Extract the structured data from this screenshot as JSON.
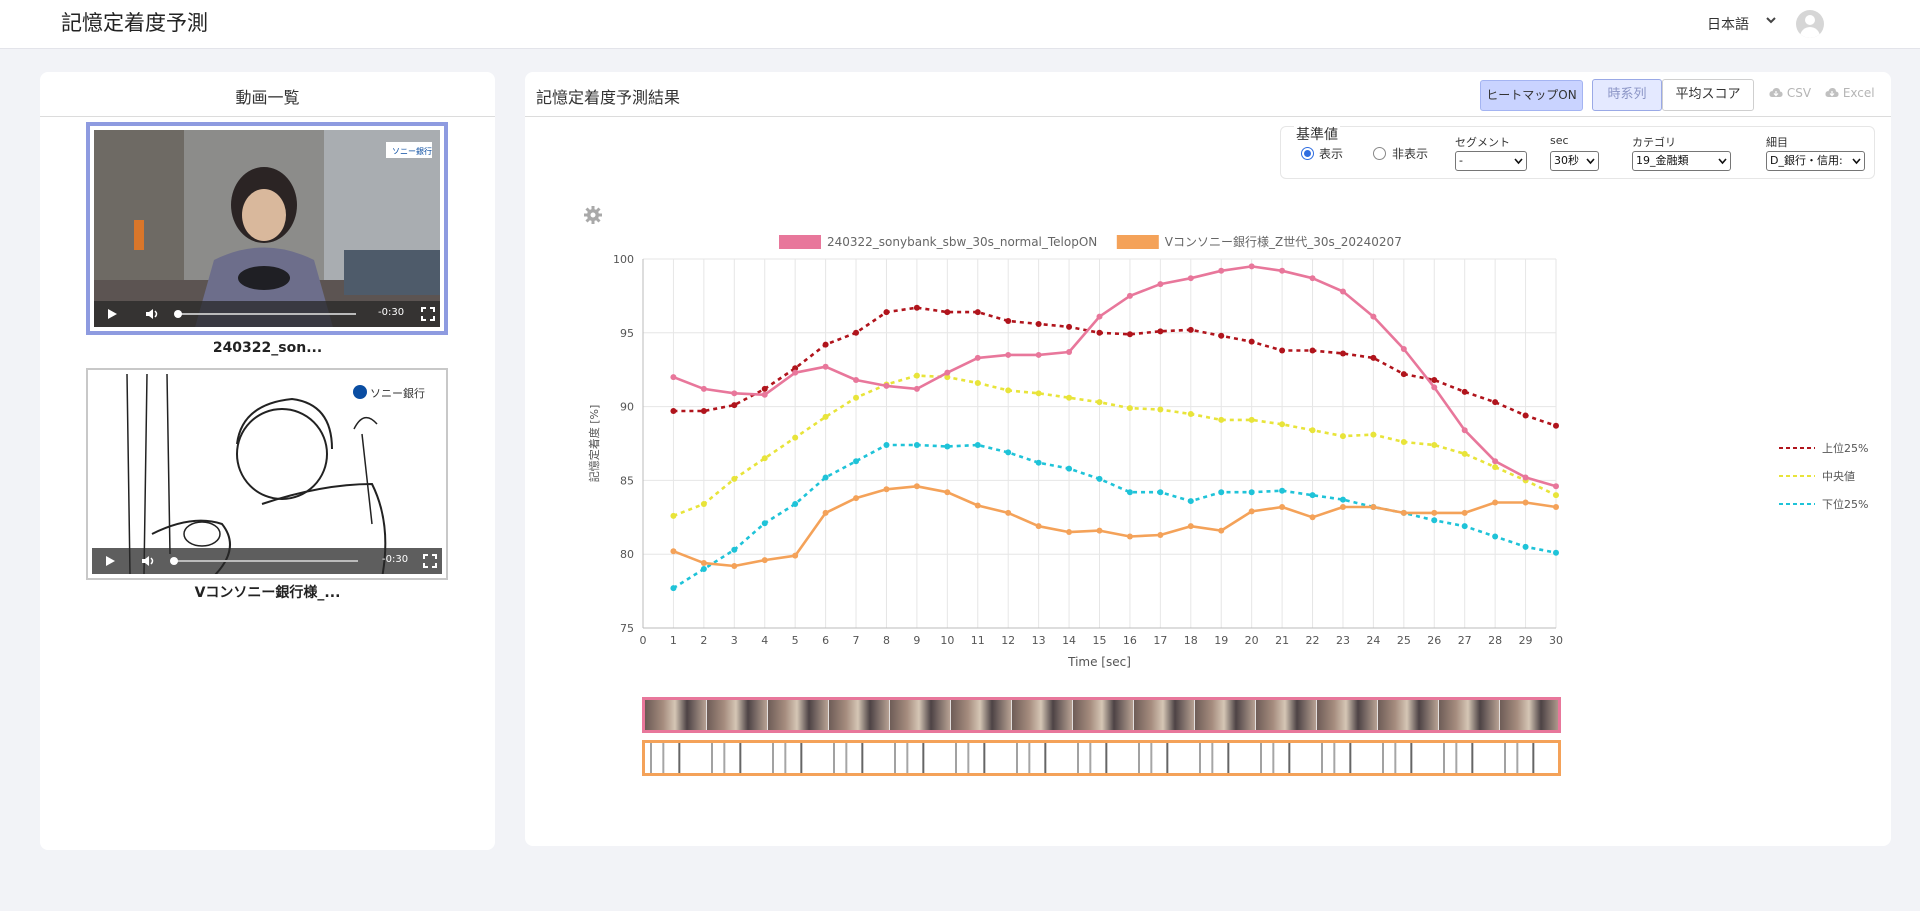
{
  "header": {
    "app_title": "記憶定着度予測",
    "language": "日本語",
    "icons": [
      "chevron-down-icon",
      "user-avatar-icon"
    ]
  },
  "video_list": {
    "title": "動画一覧",
    "items": [
      {
        "label": "240322_son...",
        "time": "-0:30",
        "selected": true,
        "logo_text": "ソニー銀行"
      },
      {
        "label": "Vコンソニー銀行様_...",
        "time": "-0:30",
        "selected": false,
        "logo_text": "ソニー銀行"
      }
    ]
  },
  "results": {
    "title": "記憶定着度予測結果",
    "heatmap_button": "ヒートマップON",
    "view_tabs": [
      "時系列",
      "平均スコア"
    ],
    "active_tab": "時系列",
    "export": {
      "csv": "CSV",
      "excel": "Excel"
    },
    "reference": {
      "title": "基準値",
      "show_label": "表示",
      "hide_label": "非表示",
      "selected": "表示",
      "segment_label": "セグメント",
      "segment_value": "-",
      "sec_label": "sec",
      "sec_value": "30秒",
      "category_label": "カテゴリ",
      "category_value": "19_金融類",
      "item_label": "細目",
      "item_value": "D_銀行・信用:"
    }
  },
  "chart_data": {
    "type": "line",
    "xlabel": "Time [sec]",
    "ylabel": "記憶定着度 [%]",
    "xlim": [
      0,
      30
    ],
    "ylim": [
      75,
      100
    ],
    "x_ticks": [
      0,
      1,
      2,
      3,
      4,
      5,
      6,
      7,
      8,
      9,
      10,
      11,
      12,
      13,
      14,
      15,
      16,
      17,
      18,
      19,
      20,
      21,
      22,
      23,
      24,
      25,
      26,
      27,
      28,
      29,
      30
    ],
    "y_ticks": [
      75,
      80,
      85,
      90,
      95,
      100
    ],
    "grid": true,
    "legend_position": "top",
    "x": [
      1,
      2,
      3,
      4,
      5,
      6,
      7,
      8,
      9,
      10,
      11,
      12,
      13,
      14,
      15,
      16,
      17,
      18,
      19,
      20,
      21,
      22,
      23,
      24,
      25,
      26,
      27,
      28,
      29,
      30
    ],
    "series": [
      {
        "name": "240322_sonybank_sbw_30s_normal_TelopON",
        "color": "#e8779b",
        "style": "solid",
        "values": [
          92.0,
          91.2,
          90.9,
          90.8,
          92.3,
          92.7,
          91.8,
          91.4,
          91.2,
          92.3,
          93.3,
          93.5,
          93.5,
          93.7,
          96.1,
          97.5,
          98.3,
          98.7,
          99.2,
          99.5,
          99.2,
          98.7,
          97.8,
          96.1,
          93.9,
          91.3,
          88.4,
          86.3,
          85.2,
          84.6
        ]
      },
      {
        "name": "Vコンソニー銀行様_Z世代_30s_20240207",
        "color": "#f4a259",
        "style": "solid",
        "values": [
          80.2,
          79.4,
          79.2,
          79.6,
          79.9,
          82.8,
          83.8,
          84.4,
          84.6,
          84.2,
          83.3,
          82.8,
          81.9,
          81.5,
          81.6,
          81.2,
          81.3,
          81.9,
          81.6,
          82.9,
          83.2,
          82.5,
          83.2,
          83.2,
          82.8,
          82.8,
          82.8,
          83.5,
          83.5,
          83.2
        ]
      },
      {
        "name": "上位25%",
        "color": "#b0141c",
        "style": "dashed",
        "values": [
          89.7,
          89.7,
          90.1,
          91.2,
          92.6,
          94.2,
          95.0,
          96.4,
          96.7,
          96.4,
          96.4,
          95.8,
          95.6,
          95.4,
          95.0,
          94.9,
          95.1,
          95.2,
          94.8,
          94.4,
          93.8,
          93.8,
          93.6,
          93.3,
          92.2,
          91.8,
          91.0,
          90.3,
          89.4,
          88.7
        ]
      },
      {
        "name": "中央値",
        "color": "#e8e43a",
        "style": "dashed",
        "values": [
          82.6,
          83.4,
          85.1,
          86.5,
          87.9,
          89.3,
          90.6,
          91.5,
          92.1,
          92.0,
          91.6,
          91.1,
          90.9,
          90.6,
          90.3,
          89.9,
          89.8,
          89.5,
          89.1,
          89.1,
          88.8,
          88.4,
          88.0,
          88.1,
          87.6,
          87.4,
          86.8,
          85.9,
          85.0,
          84.0
        ]
      },
      {
        "name": "下位25%",
        "color": "#1fc3d8",
        "style": "dashed",
        "values": [
          77.7,
          79.0,
          80.3,
          82.1,
          83.4,
          85.2,
          86.3,
          87.4,
          87.4,
          87.3,
          87.4,
          86.9,
          86.2,
          85.8,
          85.1,
          84.2,
          84.2,
          83.6,
          84.2,
          84.2,
          84.3,
          84.0,
          83.7,
          83.2,
          82.8,
          82.3,
          81.9,
          81.2,
          80.5,
          80.1
        ]
      }
    ]
  },
  "thumbnail_strips": [
    "photo-frames",
    "sketch-frames"
  ]
}
